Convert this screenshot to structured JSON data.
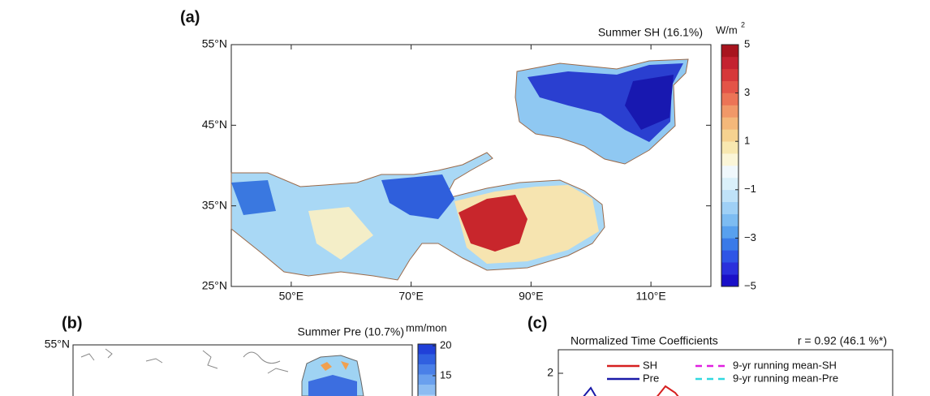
{
  "panels": [
    {
      "label": "(a)",
      "title": "Summer SH (16.1%)",
      "colorbar": {
        "unit": "W/m",
        "unit_power": "2",
        "lim": [
          -5,
          5
        ],
        "ticks": [
          5,
          3,
          1,
          {
            "value": -1,
            "label": "−1"
          },
          {
            "value": -3,
            "label": "−3"
          },
          {
            "value": -5,
            "label": "−5"
          }
        ]
      },
      "lat": {
        "lim": [
          25,
          55
        ],
        "ticks": [
          {
            "value": 25,
            "label": "25°N"
          },
          {
            "value": 35,
            "label": "35°N"
          },
          {
            "value": 45,
            "label": "45°N"
          },
          {
            "value": 55,
            "label": "55°N"
          }
        ]
      },
      "lon": {
        "lim": [
          40,
          120
        ],
        "ticks": [
          {
            "value": 50,
            "label": "50°E"
          },
          {
            "value": 70,
            "label": "70°E"
          },
          {
            "value": 90,
            "label": "90°E"
          },
          {
            "value": 110,
            "label": "110°E"
          }
        ]
      }
    },
    {
      "label": "(b)",
      "title": "Summer Pre (10.7%)",
      "colorbar": {
        "unit": "mm/mon",
        "ticks": [
          20,
          15
        ]
      },
      "lat": {
        "ticks": [
          {
            "value": 55,
            "label": "55°N"
          }
        ]
      }
    },
    {
      "label": "(c)",
      "title": "Normalized Time Coefficients",
      "subtitle": "r = 0.92  (46.1 %*)",
      "yticks": [
        2
      ],
      "legend": [
        {
          "name": "SH",
          "color": "#d62020"
        },
        {
          "name": "Pre",
          "color": "#1a1aa8"
        },
        {
          "name": "9-yr running mean-SH",
          "color": "#e020e0"
        },
        {
          "name": "9-yr running mean-Pre",
          "color": "#30d8e0"
        }
      ]
    }
  ]
}
